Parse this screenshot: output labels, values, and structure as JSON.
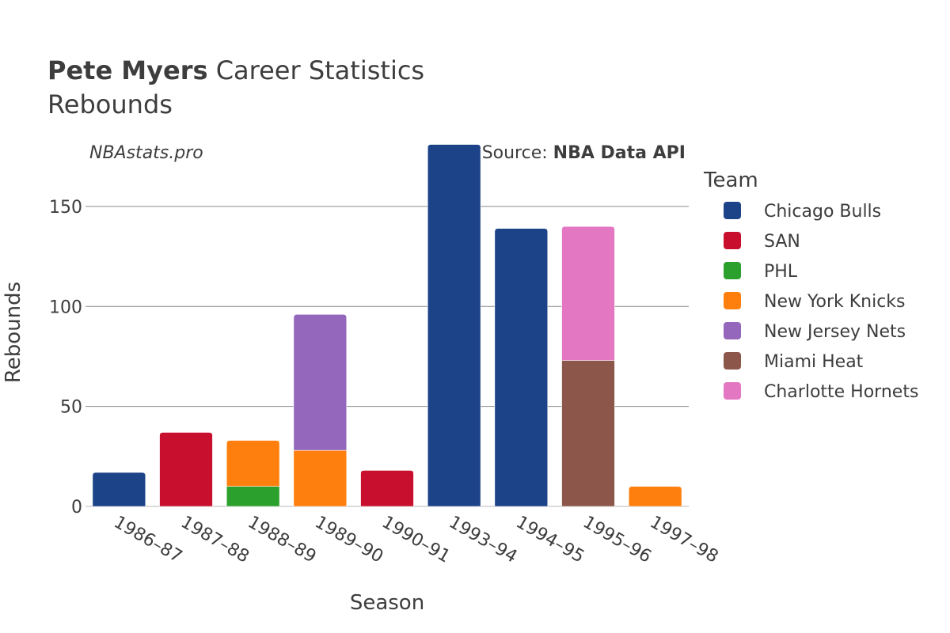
{
  "chart_data": {
    "type": "bar",
    "stacked": true,
    "title": {
      "bold": "Pete Myers",
      "rest": " Career Statistics"
    },
    "subtitle": "Rebounds",
    "watermark": "NBAstats.pro",
    "source": {
      "prefix": "Source: ",
      "bold": "NBA Data API"
    },
    "xlabel": "Season",
    "ylabel": "Rebounds",
    "ylim": [
      0,
      182
    ],
    "yticks": [
      0,
      50,
      100,
      150
    ],
    "grid": true,
    "legend": {
      "title": "Team",
      "placement": "right"
    },
    "categories": [
      "1986–87",
      "1987–88",
      "1988–89",
      "1989–90",
      "1990–91",
      "1993–94",
      "1994–95",
      "1995–96",
      "1997–98"
    ],
    "series": [
      {
        "name": "Chicago Bulls",
        "color": "#1c4288",
        "values": [
          17,
          0,
          0,
          0,
          0,
          181,
          139,
          0,
          0
        ]
      },
      {
        "name": "SAN",
        "color": "#c8102e",
        "values": [
          0,
          37,
          0,
          0,
          18,
          0,
          0,
          0,
          0
        ]
      },
      {
        "name": "PHL",
        "color": "#2ca02c",
        "values": [
          0,
          0,
          10,
          0,
          0,
          0,
          0,
          0,
          0
        ]
      },
      {
        "name": "New York Knicks",
        "color": "#ff7f0e",
        "values": [
          0,
          0,
          23,
          28,
          0,
          0,
          0,
          0,
          10
        ]
      },
      {
        "name": "New Jersey Nets",
        "color": "#9467bd",
        "values": [
          0,
          0,
          0,
          68,
          0,
          0,
          0,
          0,
          0
        ]
      },
      {
        "name": "Miami Heat",
        "color": "#8c564b",
        "values": [
          0,
          0,
          0,
          0,
          0,
          0,
          0,
          73,
          0
        ]
      },
      {
        "name": "Charlotte Hornets",
        "color": "#e377c2",
        "values": [
          0,
          0,
          0,
          0,
          0,
          0,
          0,
          67,
          0
        ]
      }
    ]
  }
}
